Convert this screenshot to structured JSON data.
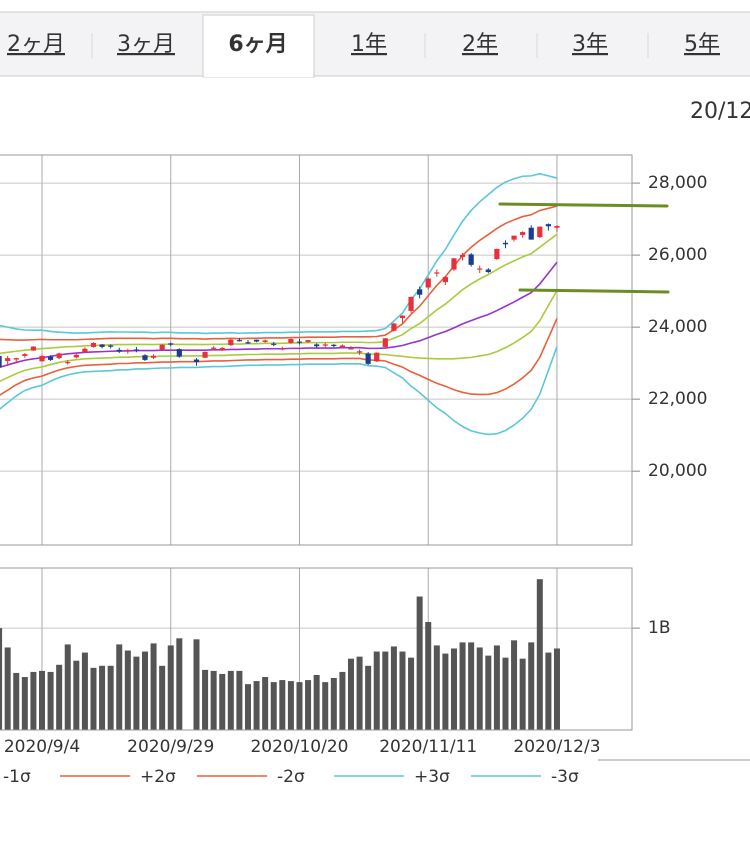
{
  "tabs": [
    "2ヶ月",
    "3ヶ月",
    "6ヶ月",
    "1年",
    "2年",
    "3年",
    "5年"
  ],
  "selected_tab": 2,
  "date": "20/12",
  "chart_data": [
    {
      "type": "candlestick",
      "ylim": [
        17950,
        28780
      ],
      "yticks": [
        {
          "value": 20000,
          "label": "20,000"
        },
        {
          "value": 22000,
          "label": "22,000"
        },
        {
          "value": 24000,
          "label": "24,000"
        },
        {
          "value": 26000,
          "label": "26,000"
        },
        {
          "value": 28000,
          "label": "28,000"
        }
      ],
      "grid": true,
      "up_color": "#e8303a",
      "down_color": "#1a3d8f",
      "open": [
        23200,
        23060,
        23100,
        23200,
        23350,
        23050,
        23180,
        23140,
        23000,
        23160,
        23300,
        23450,
        23520,
        23490,
        23370,
        23340,
        23380,
        23220,
        23150,
        23380,
        23550,
        23390,
        null,
        23100,
        23150,
        23430,
        23350,
        23500,
        23640,
        23580,
        23650,
        23590,
        23540,
        23380,
        23560,
        23600,
        23590,
        23520,
        23490,
        23510,
        23440,
        23380,
        23300,
        23270,
        23050,
        23450,
        23900,
        24250,
        24450,
        25050,
        25100,
        25500,
        25250,
        25600,
        25950,
        26020,
        25610,
        25600,
        25890,
        26340,
        26430,
        26560,
        26760,
        26500,
        26860,
        26760
      ],
      "high": [
        23300,
        23200,
        23150,
        23280,
        23470,
        23240,
        23220,
        23290,
        23080,
        23260,
        23440,
        23580,
        23530,
        23520,
        23430,
        23400,
        23450,
        23250,
        23250,
        23530,
        23570,
        23410,
        null,
        23140,
        23330,
        23470,
        23450,
        23670,
        23700,
        23640,
        23650,
        23660,
        23590,
        23460,
        23690,
        23670,
        23640,
        23550,
        23570,
        23530,
        23520,
        23470,
        23380,
        23310,
        23300,
        23700,
        24120,
        24330,
        24850,
        25130,
        25370,
        25600,
        25420,
        25920,
        26060,
        26060,
        25710,
        25640,
        26180,
        26410,
        26540,
        26660,
        26830,
        26800,
        26880,
        26830
      ],
      "low": [
        22800,
        22960,
        22990,
        23150,
        23340,
        23050,
        23060,
        23110,
        22960,
        23130,
        23290,
        23430,
        23410,
        23410,
        23280,
        23260,
        23300,
        23060,
        23110,
        23370,
        23470,
        23150,
        null,
        22930,
        23140,
        23360,
        23340,
        23480,
        23600,
        23530,
        23580,
        23560,
        23470,
        23360,
        23540,
        23520,
        23560,
        23420,
        23440,
        23440,
        23420,
        23380,
        23230,
        22950,
        23030,
        23400,
        23880,
        24120,
        24400,
        24800,
        25050,
        25400,
        25170,
        25560,
        25850,
        25680,
        25500,
        25500,
        25870,
        26190,
        26380,
        26480,
        26430,
        26470,
        26680,
        26650
      ],
      "close": [
        22880,
        23140,
        23140,
        23250,
        23460,
        23200,
        23090,
        23270,
        23030,
        23230,
        23400,
        23560,
        23450,
        23470,
        23320,
        23360,
        23350,
        23090,
        23200,
        23510,
        23540,
        23180,
        null,
        23030,
        23310,
        23430,
        23420,
        23650,
        23620,
        23560,
        23600,
        23630,
        23510,
        23410,
        23670,
        23570,
        23640,
        23470,
        23520,
        23490,
        23490,
        23420,
        23330,
        22980,
        23290,
        23690,
        24100,
        24320,
        24840,
        24900,
        25350,
        25520,
        25390,
        25910,
        26010,
        25730,
        25630,
        25530,
        26170,
        26300,
        26540,
        26640,
        26430,
        26790,
        26800,
        26810
      ],
      "series": [
        {
          "color": "#9933cc",
          "values": [
            22880,
            22950,
            23020,
            23080,
            23120,
            23150,
            23190,
            23230,
            23260,
            23280,
            23300,
            23310,
            23320,
            23330,
            23340,
            23340,
            23350,
            23350,
            23350,
            23360,
            23360,
            23360,
            23360,
            23360,
            23360,
            23370,
            23370,
            23380,
            23380,
            23390,
            23390,
            23400,
            23400,
            23400,
            23410,
            23410,
            23420,
            23420,
            23420,
            23420,
            23430,
            23430,
            23430,
            23410,
            23410,
            23420,
            23450,
            23490,
            23560,
            23620,
            23710,
            23800,
            23880,
            23980,
            24090,
            24180,
            24270,
            24350,
            24460,
            24580,
            24700,
            24830,
            24960,
            25200,
            25500,
            25800
          ]
        },
        {
          "color": "#a8cc3c",
          "values": [
            23270,
            23300,
            23330,
            23360,
            23385,
            23405,
            23420,
            23440,
            23455,
            23465,
            23480,
            23490,
            23500,
            23510,
            23515,
            23515,
            23520,
            23520,
            23515,
            23525,
            23525,
            23520,
            23520,
            23520,
            23515,
            23525,
            23525,
            23535,
            23530,
            23540,
            23540,
            23550,
            23550,
            23550,
            23560,
            23560,
            23570,
            23570,
            23570,
            23570,
            23580,
            23580,
            23580,
            23570,
            23575,
            23600,
            23690,
            23790,
            23960,
            24100,
            24290,
            24480,
            24640,
            24840,
            25040,
            25200,
            25340,
            25460,
            25600,
            25730,
            25840,
            25950,
            26040,
            26220,
            26400,
            26580
          ]
        },
        {
          "name": "-1σ",
          "color": "#a8cc3c",
          "values": [
            22490,
            22600,
            22710,
            22800,
            22855,
            22895,
            22960,
            23020,
            23065,
            23095,
            23120,
            23130,
            23140,
            23150,
            23165,
            23165,
            23180,
            23180,
            23185,
            23195,
            23195,
            23200,
            23200,
            23200,
            23205,
            23215,
            23215,
            23225,
            23230,
            23240,
            23240,
            23250,
            23250,
            23250,
            23260,
            23260,
            23270,
            23270,
            23270,
            23270,
            23280,
            23280,
            23280,
            23250,
            23245,
            23240,
            23210,
            23190,
            23160,
            23140,
            23130,
            23120,
            23120,
            23120,
            23140,
            23160,
            23200,
            23240,
            23320,
            23430,
            23560,
            23710,
            23880,
            24180,
            24600,
            25020
          ]
        },
        {
          "name": "+2σ",
          "color": "#e8603c",
          "values": [
            23660,
            23650,
            23640,
            23640,
            23650,
            23660,
            23650,
            23650,
            23650,
            23650,
            23660,
            23670,
            23680,
            23690,
            23690,
            23690,
            23690,
            23690,
            23680,
            23690,
            23690,
            23680,
            23680,
            23680,
            23670,
            23680,
            23680,
            23690,
            23680,
            23690,
            23690,
            23700,
            23700,
            23700,
            23710,
            23710,
            23720,
            23720,
            23720,
            23720,
            23730,
            23730,
            23730,
            23730,
            23740,
            23780,
            23930,
            24090,
            24360,
            24580,
            24870,
            25160,
            25400,
            25700,
            25990,
            26220,
            26410,
            26570,
            26740,
            26880,
            26980,
            27070,
            27120,
            27240,
            27300,
            27360
          ]
        },
        {
          "name": "-2σ",
          "color": "#e8603c",
          "values": [
            22100,
            22250,
            22400,
            22520,
            22590,
            22640,
            22730,
            22810,
            22870,
            22910,
            22940,
            22950,
            22960,
            22970,
            22990,
            22990,
            23010,
            23010,
            23020,
            23030,
            23030,
            23040,
            23040,
            23040,
            23050,
            23060,
            23060,
            23070,
            23080,
            23090,
            23090,
            23100,
            23100,
            23100,
            23110,
            23110,
            23120,
            23120,
            23120,
            23120,
            23130,
            23130,
            23130,
            23090,
            23080,
            23060,
            22970,
            22890,
            22760,
            22660,
            22550,
            22440,
            22360,
            22260,
            22190,
            22140,
            22130,
            22130,
            22180,
            22280,
            22420,
            22590,
            22800,
            23160,
            23700,
            24240
          ]
        },
        {
          "name": "+3σ",
          "color": "#5bc8d8",
          "values": [
            24050,
            24000,
            23950,
            23920,
            23915,
            23915,
            23880,
            23860,
            23845,
            23835,
            23840,
            23850,
            23860,
            23870,
            23865,
            23865,
            23860,
            23860,
            23845,
            23855,
            23855,
            23840,
            23840,
            23840,
            23825,
            23835,
            23835,
            23845,
            23830,
            23840,
            23840,
            23850,
            23850,
            23850,
            23860,
            23860,
            23870,
            23870,
            23870,
            23870,
            23880,
            23880,
            23880,
            23890,
            23905,
            23960,
            24170,
            24390,
            24760,
            25060,
            25450,
            25840,
            26160,
            26560,
            26940,
            27240,
            27480,
            27680,
            27880,
            28030,
            28120,
            28190,
            28200,
            28260,
            28200,
            28140
          ]
        },
        {
          "name": "-3σ",
          "color": "#5bc8d8",
          "values": [
            21710,
            21900,
            22090,
            22240,
            22325,
            22385,
            22500,
            22600,
            22675,
            22725,
            22760,
            22770,
            22780,
            22790,
            22815,
            22815,
            22840,
            22840,
            22855,
            22865,
            22865,
            22880,
            22880,
            22880,
            22895,
            22905,
            22905,
            22915,
            22930,
            22940,
            22940,
            22950,
            22950,
            22950,
            22960,
            22960,
            22970,
            22970,
            22970,
            22970,
            22980,
            22980,
            22980,
            22930,
            22915,
            22880,
            22730,
            22590,
            22360,
            22180,
            21970,
            21760,
            21600,
            21400,
            21240,
            21120,
            21060,
            21020,
            21040,
            21130,
            21280,
            21470,
            21720,
            22140,
            22800,
            23460
          ]
        }
      ]
    },
    {
      "type": "bar",
      "color": "#555555",
      "ylim": [
        0,
        1.59
      ],
      "yticks": [
        {
          "value": 1,
          "label": "1B"
        }
      ],
      "grid": true,
      "categories": [
        null,
        null,
        null,
        null,
        null,
        "2020/9/4",
        null,
        null,
        null,
        null,
        null,
        null,
        null,
        null,
        null,
        null,
        null,
        null,
        null,
        null,
        "2020/9/29",
        null,
        null,
        null,
        null,
        null,
        null,
        null,
        null,
        null,
        null,
        null,
        null,
        null,
        null,
        "2020/10/20",
        null,
        null,
        null,
        null,
        null,
        null,
        null,
        null,
        null,
        null,
        null,
        null,
        null,
        null,
        "2020/11/11",
        null,
        null,
        null,
        null,
        null,
        null,
        null,
        null,
        null,
        null,
        null,
        null,
        null,
        null,
        "2020/12/3"
      ],
      "values": [
        1.0,
        0.81,
        0.56,
        0.52,
        0.57,
        0.58,
        0.57,
        0.64,
        0.84,
        0.68,
        0.76,
        0.61,
        0.63,
        0.63,
        0.84,
        0.78,
        0.72,
        0.77,
        0.85,
        0.63,
        0.83,
        0.9,
        null,
        0.89,
        0.59,
        0.58,
        0.55,
        0.58,
        0.58,
        0.45,
        0.48,
        0.52,
        0.47,
        0.49,
        0.48,
        0.47,
        0.49,
        0.54,
        0.47,
        0.51,
        0.57,
        0.7,
        0.72,
        0.63,
        0.77,
        0.77,
        0.82,
        0.77,
        0.71,
        1.31,
        1.06,
        0.83,
        0.75,
        0.8,
        0.86,
        0.86,
        0.81,
        0.73,
        0.83,
        0.71,
        0.88,
        0.7,
        0.86,
        1.48,
        0.76,
        0.8
      ]
    }
  ]
}
